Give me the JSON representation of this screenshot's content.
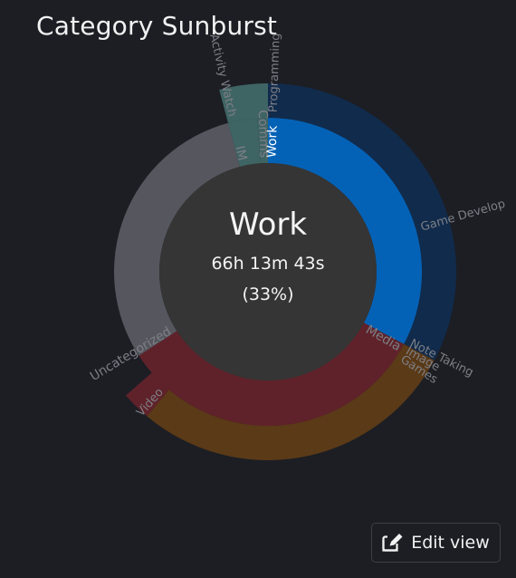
{
  "page": {
    "title": "Category Sunburst"
  },
  "center": {
    "name": "Work",
    "duration": "66h 13m 43s",
    "percent": "(33%)"
  },
  "edit_button": {
    "label": "Edit view",
    "icon": "edit-icon"
  },
  "chart_data": {
    "type": "sunburst",
    "inner_ring": [
      {
        "label": "Work",
        "start_deg": 0,
        "end_deg": 118,
        "color": "#0462b6",
        "label_color": "#ffffff"
      },
      {
        "label": "Media",
        "start_deg": 118,
        "end_deg": 237,
        "color": "#60222a",
        "label_color": "#7d7f86"
      },
      {
        "label": "Uncategorized",
        "start_deg": 237,
        "end_deg": 345,
        "color": "#56575e",
        "label_color": "#7d7f86"
      },
      {
        "label": "IM",
        "start_deg": 345,
        "end_deg": 356,
        "color": "#3f6464",
        "label_color": "#7d7f86"
      },
      {
        "label": "Comms",
        "start_deg": 356,
        "end_deg": 360,
        "color": "#3f6464",
        "label_color": "#7d7f86"
      }
    ],
    "outer_ring": [
      {
        "label": "Programming",
        "start_deg": 0,
        "end_deg": 72,
        "color": "#112b4c",
        "label_color": "#7d7f86"
      },
      {
        "label": "Game Develop",
        "start_deg": 72,
        "end_deg": 115,
        "color": "#112b4c",
        "label_color": "#7d7f86"
      },
      {
        "label": "Note Taking",
        "start_deg": 115,
        "end_deg": 118,
        "color": "#112b4c",
        "label_color": "#7d7f86"
      },
      {
        "label": "Image",
        "start_deg": 118,
        "end_deg": 121,
        "color": "#5b3a17",
        "label_color": "#7d7f86"
      },
      {
        "label": "Games",
        "start_deg": 121,
        "end_deg": 220,
        "color": "#5b3a17",
        "label_color": "#7d7f86"
      },
      {
        "label": "Video",
        "start_deg": 220,
        "end_deg": 229,
        "color": "#60222a",
        "label_color": "#7d7f86"
      },
      {
        "label": "Activity Watch",
        "start_deg": 345,
        "end_deg": 360,
        "color": "#3f6464",
        "label_color": "#7d7f86"
      }
    ]
  }
}
